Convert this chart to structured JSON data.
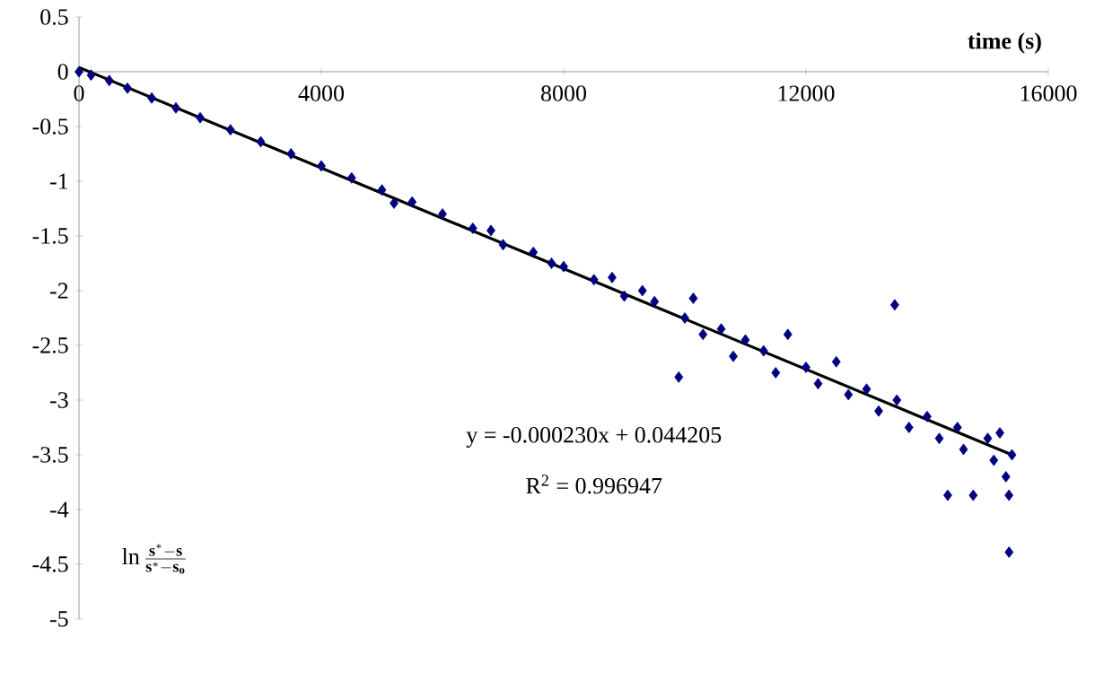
{
  "chart_data": {
    "type": "scatter",
    "xlabel": "time (s)",
    "ylabel": "\\mathbf{\\ln\\frac{s^*-s}{s^*-s_o}}",
    "xlim": [
      0,
      16000
    ],
    "ylim": [
      -5,
      0.5
    ],
    "xticks": [
      0,
      4000,
      8000,
      12000,
      16000
    ],
    "yticks": [
      -5,
      -4.5,
      -4,
      -3.5,
      -3,
      -2.5,
      -2,
      -1.5,
      -1,
      -0.5,
      0,
      0.5
    ],
    "series": [
      {
        "marker": "diamond",
        "color": "#000080",
        "x": [
          0,
          200,
          500,
          800,
          1200,
          1600,
          2000,
          2500,
          3000,
          3500,
          4000,
          4500,
          5000,
          5200,
          5500,
          6000,
          6500,
          6800,
          7000,
          7500,
          7800,
          8000,
          8500,
          8800,
          9000,
          9300,
          9500,
          9900,
          10000,
          10140,
          10300,
          10600,
          10800,
          11000,
          11300,
          11500,
          11700,
          12000,
          12200,
          12500,
          12700,
          13000,
          13200,
          13465,
          13500,
          13700,
          14000,
          14200,
          14340,
          14500,
          14600,
          14760,
          15000,
          15100,
          15200,
          15300,
          15352,
          15400,
          15350
        ],
        "values": [
          0,
          -0.03,
          -0.08,
          -0.15,
          -0.24,
          -0.33,
          -0.42,
          -0.53,
          -0.64,
          -0.75,
          -0.86,
          -0.97,
          -1.08,
          -1.2,
          -1.19,
          -1.3,
          -1.43,
          -1.45,
          -1.58,
          -1.65,
          -1.75,
          -1.78,
          -1.9,
          -1.88,
          -2.05,
          -2.0,
          -2.1,
          -2.79,
          -2.25,
          -2.07,
          -2.4,
          -2.35,
          -2.6,
          -2.45,
          -2.55,
          -2.75,
          -2.4,
          -2.7,
          -2.85,
          -2.65,
          -2.95,
          -2.9,
          -3.1,
          -2.13,
          -3.0,
          -3.25,
          -3.15,
          -3.35,
          -3.87,
          -3.25,
          -3.45,
          -3.87,
          -3.35,
          -3.55,
          -3.3,
          -3.7,
          -4.39,
          -3.5,
          -3.87
        ]
      },
      {
        "type": "line",
        "color": "#000000",
        "x": [
          0,
          15400
        ],
        "values": [
          0.04,
          -3.5
        ]
      }
    ],
    "annotations": [
      "y = -0.000230x + 0.044205",
      "R$^{2}$ = 0.996947"
    ]
  }
}
